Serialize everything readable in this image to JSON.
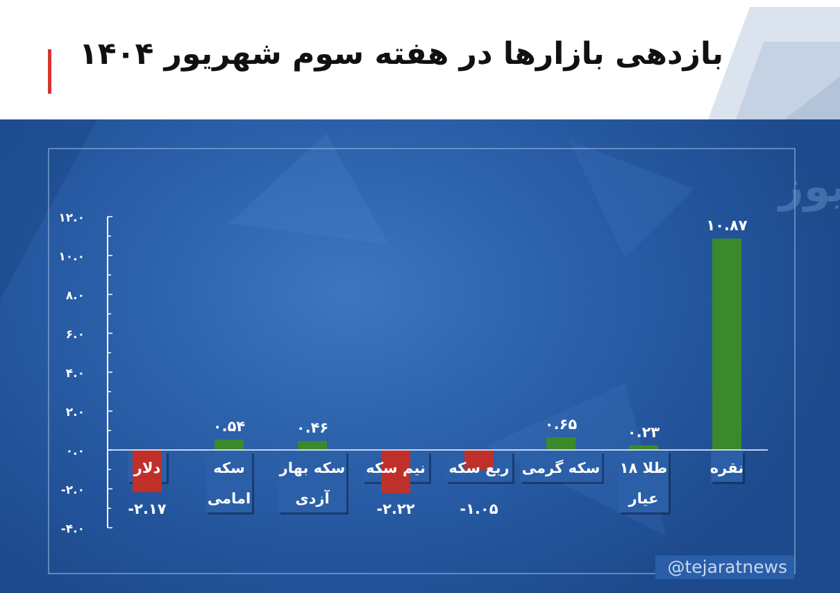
{
  "title": "بازدهی بازارها در هفته سوم شهریور ۱۴۰۴",
  "watermark": "تجارت نیوز",
  "social_handle": "@tejaratnews",
  "colors": {
    "positive": "#3a8a2c",
    "negative": "#c0302a",
    "accent": "#d8352f",
    "panel": "#2a5ea8"
  },
  "chart_data": {
    "type": "bar",
    "categories": [
      "دلار",
      "سکه امامی",
      "سکه بهار آزدی",
      "نیم سکه",
      "ربع سکه",
      "سکه گرمی",
      "طلا ۱۸ عیار",
      "نقره"
    ],
    "category_lines": [
      [
        "دلار"
      ],
      [
        "سکه",
        "امامی"
      ],
      [
        "سکه بهار",
        "آزدی"
      ],
      [
        "نیم سکه"
      ],
      [
        "ربع سکه"
      ],
      [
        "سکه گرمی"
      ],
      [
        "طلا ۱۸",
        "عیار"
      ],
      [
        "نقره"
      ]
    ],
    "values": [
      -2.17,
      0.54,
      0.46,
      -2.22,
      -1.05,
      0.65,
      0.23,
      10.87
    ],
    "value_labels": [
      "-۲.۱۷",
      "۰.۵۴",
      "۰.۴۶",
      "-۲.۲۲",
      "-۱.۰۵",
      "۰.۶۵",
      "۰.۲۳",
      "۱۰.۸۷"
    ],
    "yticks": [
      12,
      10,
      8,
      6,
      4,
      2,
      0,
      -2,
      -4
    ],
    "ytick_labels": [
      "۱۲.۰",
      "۱۰.۰",
      "۸.۰",
      "۶.۰",
      "۴.۰",
      "۲.۰",
      "۰.۰",
      "-۲.۰",
      "-۴.۰"
    ],
    "ylim": [
      -4,
      12
    ],
    "grid": false,
    "legend": "none",
    "xlabel": "",
    "ylabel": ""
  }
}
